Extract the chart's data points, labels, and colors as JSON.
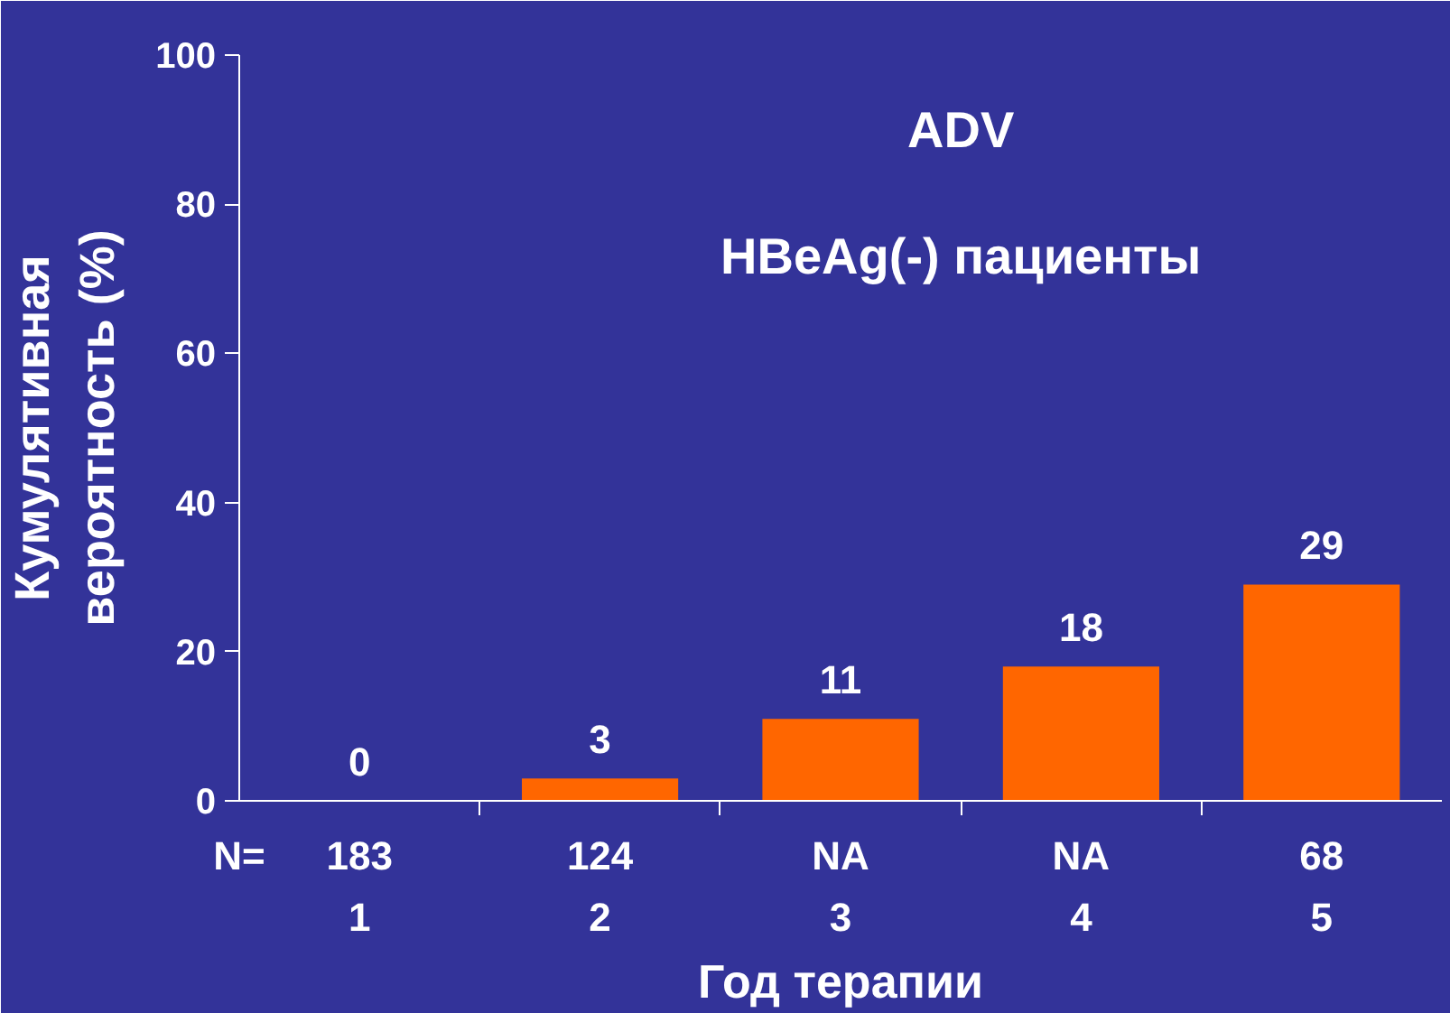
{
  "chart_data": {
    "type": "bar",
    "title": "ADV",
    "subtitle": "HBeAg(-) пациенты",
    "xlabel": "Год терапии",
    "ylabel": "Кумулятивная вероятность (%)",
    "categories": [
      "1",
      "2",
      "3",
      "4",
      "5"
    ],
    "values": [
      0,
      3,
      11,
      18,
      29
    ],
    "color": "#ff6600",
    "ylim": [
      0,
      100
    ],
    "yticks": [
      0,
      20,
      40,
      60,
      80,
      100
    ],
    "grid": false,
    "data_labels": true,
    "annotations": [
      "N=",
      "183",
      "124",
      "NA",
      "NA",
      "68"
    ]
  }
}
